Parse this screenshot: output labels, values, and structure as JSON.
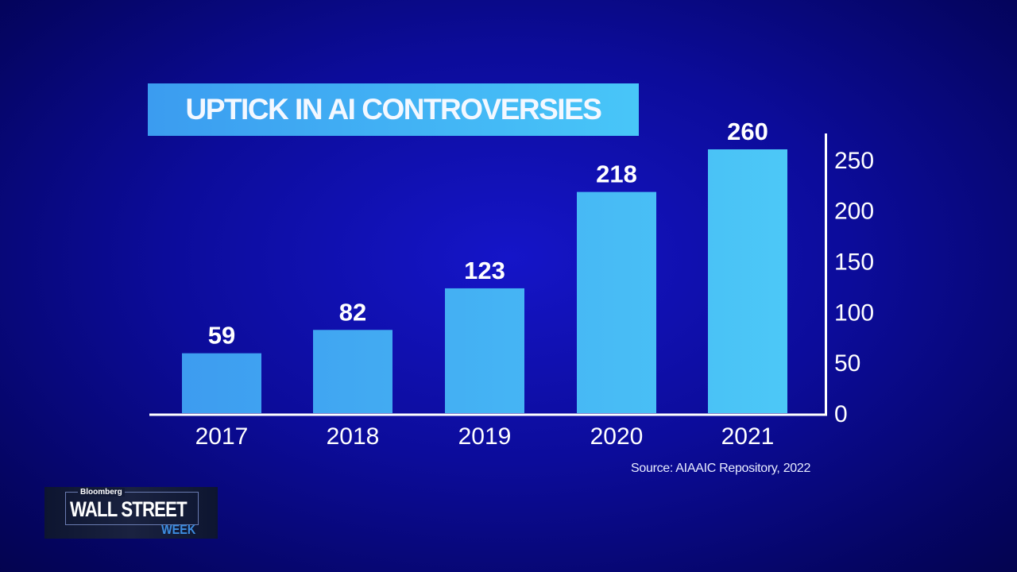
{
  "chart_data": {
    "type": "bar",
    "title": "UPTICK IN AI CONTROVERSIES",
    "categories": [
      "2017",
      "2018",
      "2019",
      "2020",
      "2021"
    ],
    "values": [
      59,
      82,
      123,
      218,
      260
    ],
    "data_labels": [
      "59",
      "82",
      "123",
      "218",
      "260"
    ],
    "yticks": [
      "0",
      "50",
      "100",
      "150",
      "200",
      "250"
    ],
    "ytick_values": [
      0,
      50,
      100,
      150,
      200,
      250
    ],
    "ylim": [
      0,
      280
    ],
    "y_axis_side": "right",
    "grid": false,
    "xlabel": "",
    "ylabel": "",
    "source": "Source: AIAAIC Repository, 2022",
    "colors": {
      "bar_left": "#3d9cf0",
      "bar_right": "#4cc8f7",
      "background": "#0c0c9a",
      "axis": "#ffffff"
    }
  },
  "branding": {
    "network": "Bloomberg",
    "show_line1": "WALL STREET",
    "show_line2": "WEEK"
  }
}
